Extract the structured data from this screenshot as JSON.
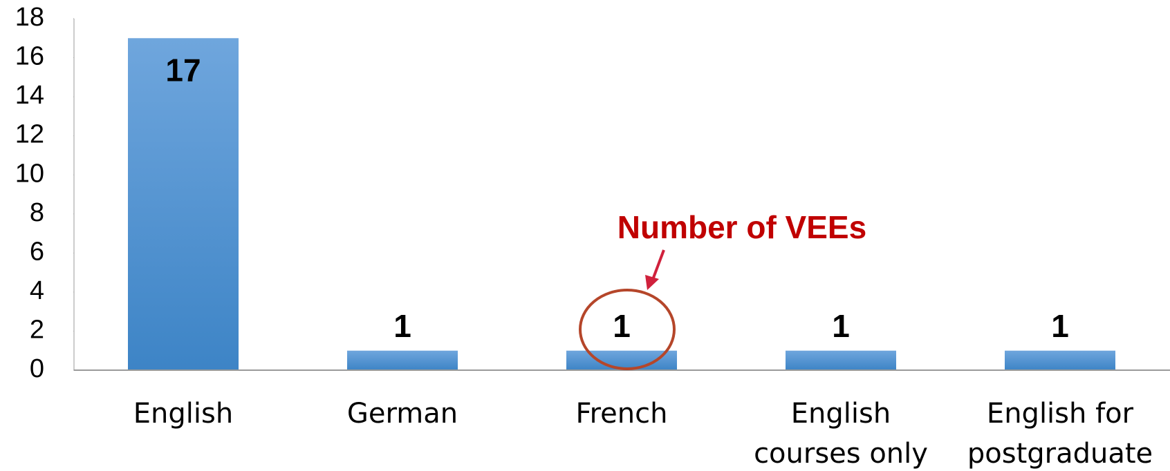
{
  "chart_data": {
    "type": "bar",
    "categories": [
      "English",
      "German",
      "French",
      "English courses only",
      "English for postgraduate"
    ],
    "values": [
      17,
      1,
      1,
      1,
      1
    ],
    "color": "#4a8fd0",
    "ylim": [
      0,
      18
    ],
    "yticks": [
      0,
      2,
      4,
      6,
      8,
      10,
      12,
      14,
      16,
      18
    ],
    "grid": false,
    "annotation": "Number of VEEs"
  }
}
